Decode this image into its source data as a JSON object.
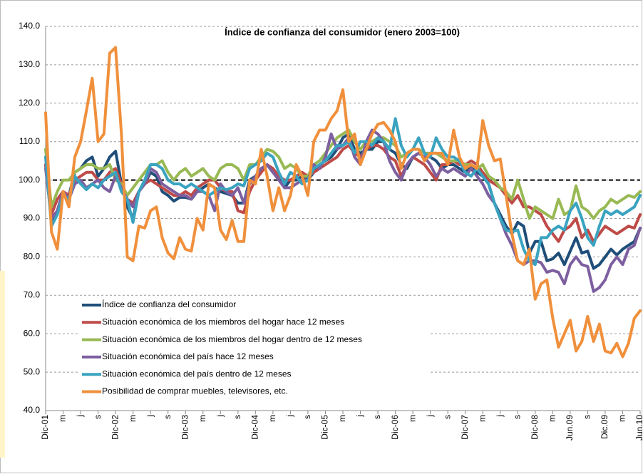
{
  "chart_data": {
    "type": "line",
    "title": "Índice de confianza del consumidor (enero 2003=100)",
    "categories": [
      "Dic-01",
      null,
      null,
      "m",
      null,
      null,
      "j",
      null,
      null,
      "s",
      null,
      null,
      "Dic-02",
      null,
      null,
      "m",
      null,
      null,
      "j",
      null,
      null,
      "s",
      null,
      null,
      "Dic-03",
      null,
      null,
      "m",
      null,
      null,
      "j",
      null,
      null,
      "s",
      null,
      null,
      "Dic-04",
      null,
      null,
      "m",
      null,
      null,
      "j",
      null,
      null,
      "s",
      null,
      null,
      "Dic-05",
      null,
      null,
      "m",
      null,
      null,
      "j",
      null,
      null,
      "s",
      null,
      null,
      "Dic-06",
      null,
      null,
      "m",
      null,
      null,
      "j",
      null,
      null,
      "s",
      null,
      null,
      "Dic-07",
      null,
      null,
      "m",
      null,
      null,
      "j",
      null,
      null,
      "s",
      null,
      null,
      "Dic-08",
      null,
      null,
      "m",
      null,
      null,
      "Jun.09",
      null,
      null,
      "s",
      null,
      null,
      "Dic.09",
      null,
      null,
      "m",
      null,
      null,
      "Jun.10"
    ],
    "series": [
      {
        "name": "Índice de confianza del consumidor",
        "color": "#1f4e79",
        "values": [
          104,
          89.5,
          92,
          97,
          96,
          102,
          103,
          105,
          106,
          101,
          103,
          106,
          107.5,
          99,
          93,
          90,
          97,
          99,
          102,
          101,
          97,
          96,
          94.5,
          95.5,
          95.5,
          95,
          97,
          98,
          99,
          98,
          97,
          96.5,
          96,
          94,
          94,
          100,
          101,
          103,
          104,
          102,
          101,
          98,
          100,
          100,
          101,
          100,
          102,
          104,
          105,
          106,
          108,
          111,
          112,
          108,
          107,
          108,
          108,
          110,
          110,
          108,
          107,
          104,
          103,
          106,
          107,
          106,
          106,
          105,
          103,
          104,
          104,
          103,
          102,
          104,
          102,
          101,
          99,
          94,
          91,
          88,
          86,
          89,
          88,
          81,
          84,
          84,
          79,
          79.5,
          81,
          78,
          81.5,
          85,
          81,
          81.5,
          77,
          78,
          80,
          82,
          80.5,
          82,
          83,
          84,
          87.5
        ]
      },
      {
        "name": "Situación económica de los miembros del hogar hace 12 meses",
        "color": "#be4b48",
        "values": [
          104,
          91,
          95,
          97,
          96,
          100,
          101,
          102,
          102,
          100,
          100,
          102,
          103,
          99,
          95,
          94,
          97,
          99,
          100,
          99,
          98,
          97,
          96,
          96,
          97,
          96,
          98,
          99,
          100,
          100,
          98,
          97,
          97,
          92,
          91.5,
          97,
          100,
          102,
          104,
          103,
          101,
          100,
          100,
          101,
          102,
          101,
          102,
          103,
          104,
          105,
          106,
          108,
          109,
          107,
          106,
          108,
          109,
          109,
          108,
          106,
          105,
          101,
          104,
          106,
          105,
          104,
          102,
          100,
          104,
          104,
          105,
          104,
          104,
          105,
          104,
          102,
          100,
          99,
          98,
          96,
          94,
          96,
          93,
          93,
          92,
          91,
          88,
          86,
          84,
          87,
          88,
          90,
          85,
          87,
          84,
          86,
          88,
          87,
          86,
          87,
          88,
          87.5,
          91
        ]
      },
      {
        "name": "Situación económica de los miembros del hogar dentro de 12 meses",
        "color": "#98b954",
        "values": [
          108,
          93,
          97,
          100,
          100,
          102,
          103,
          104,
          104,
          103,
          103,
          104,
          100,
          99,
          96,
          98,
          100,
          102,
          104,
          104,
          105,
          102,
          100,
          102,
          103,
          101,
          102,
          103,
          101,
          100,
          103,
          104,
          104,
          103,
          100,
          104,
          104,
          106,
          108,
          107.5,
          106,
          103,
          104,
          103,
          101,
          101,
          104,
          105,
          107,
          109,
          111,
          112,
          113,
          110,
          108,
          110,
          110,
          111,
          111,
          110,
          109,
          106,
          107,
          108,
          108,
          107,
          107,
          107,
          106,
          105,
          105,
          105,
          104,
          104,
          103,
          104,
          101,
          100,
          98,
          97,
          95,
          100,
          95,
          90,
          93,
          92,
          91,
          90,
          95,
          91,
          92,
          98.5,
          93,
          92,
          90,
          92,
          93,
          95,
          94,
          95,
          96,
          95.5,
          97
        ]
      },
      {
        "name": "Situación económica del país hace 12 meses",
        "color": "#7d5fa0",
        "values": [
          103,
          90,
          92,
          97,
          95,
          99,
          100,
          98,
          99,
          100,
          98,
          97,
          101,
          98,
          95,
          93,
          97,
          99,
          103,
          102,
          99,
          98,
          97,
          96,
          96,
          95,
          97,
          97,
          96,
          92,
          99,
          97,
          96,
          98,
          94,
          99,
          101,
          103,
          104,
          102,
          100,
          98,
          98,
          99,
          100,
          100,
          104,
          103,
          106,
          112,
          108,
          109,
          111,
          106,
          104,
          110,
          113,
          112,
          110,
          105,
          102,
          100,
          104,
          106,
          107,
          106,
          104,
          101,
          103,
          102,
          103,
          102,
          101,
          103,
          101,
          99,
          96,
          94,
          90,
          86,
          83,
          79,
          78,
          79,
          79,
          78.5,
          76,
          76.5,
          76,
          73,
          78,
          80,
          78,
          77.5,
          71,
          72,
          74,
          78,
          80,
          78,
          82,
          83,
          87.5
        ]
      },
      {
        "name": "Situación económica del país dentro de 12 meses",
        "color": "#3aa3c0",
        "values": [
          106,
          88,
          91,
          96,
          95,
          101,
          99,
          97.5,
          99,
          98,
          100,
          101,
          102,
          97,
          95,
          89,
          97,
          100,
          104,
          104,
          103,
          100,
          99,
          99,
          98,
          99,
          98,
          97,
          96,
          97,
          98,
          97.5,
          98,
          99,
          98.5,
          103,
          104,
          105,
          107,
          106,
          102,
          99,
          102,
          101,
          99,
          100,
          103,
          104,
          105,
          107,
          109,
          109,
          110,
          107,
          110,
          110,
          109,
          111,
          110,
          108,
          116,
          109,
          106,
          108,
          111,
          107,
          106,
          111,
          108,
          106,
          106,
          105,
          102,
          101,
          103,
          101,
          99,
          94,
          90,
          87,
          86.5,
          87,
          82,
          79,
          78,
          85,
          85,
          87,
          88,
          87,
          92,
          94,
          90,
          85,
          83,
          88,
          92,
          91,
          92,
          91,
          92,
          93,
          96
        ]
      },
      {
        "name": "Posibilidad de comprar muebles, televisores, etc.",
        "color": "#f0903c",
        "values": [
          117.5,
          86.5,
          82,
          97,
          93,
          106,
          110,
          118,
          126.5,
          110,
          112,
          133,
          134.5,
          112,
          80,
          79,
          88,
          87.5,
          92,
          93,
          85,
          81,
          79.5,
          85,
          82,
          81.5,
          90,
          87,
          99,
          98,
          87,
          84.5,
          89.5,
          84,
          84,
          100,
          99,
          108,
          101,
          92,
          98,
          92,
          96,
          104,
          101,
          96,
          110,
          113,
          113,
          116,
          118,
          123.5,
          110,
          112,
          104,
          108,
          112,
          114.5,
          115,
          113,
          110,
          103,
          107,
          108,
          108,
          105,
          107,
          107,
          107,
          104,
          113,
          106,
          103,
          104,
          103,
          115.5,
          109,
          105,
          105.5,
          96,
          86,
          79,
          78,
          82,
          69,
          73,
          74,
          64,
          56.5,
          60,
          63.5,
          55.5,
          58,
          64.5,
          58,
          62.5,
          55.5,
          55,
          57.5,
          54,
          57.5,
          64,
          66
        ]
      }
    ],
    "ylim": [
      40,
      140
    ],
    "yticks": [
      {
        "value": 40,
        "label": "40.0"
      },
      {
        "value": 50,
        "label": "50.0"
      },
      {
        "value": 60,
        "label": "60.0"
      },
      {
        "value": 70,
        "label": "70.0"
      },
      {
        "value": 80,
        "label": "80.0"
      },
      {
        "value": 90,
        "label": "90.0"
      },
      {
        "value": 100,
        "label": "100.0"
      },
      {
        "value": 110,
        "label": "110.0"
      },
      {
        "value": 120,
        "label": "120.0"
      },
      {
        "value": 130,
        "label": "130.0"
      },
      {
        "value": 140,
        "label": "140.0"
      }
    ],
    "grid": true,
    "reference_line": 100,
    "legend": "lower-left"
  }
}
